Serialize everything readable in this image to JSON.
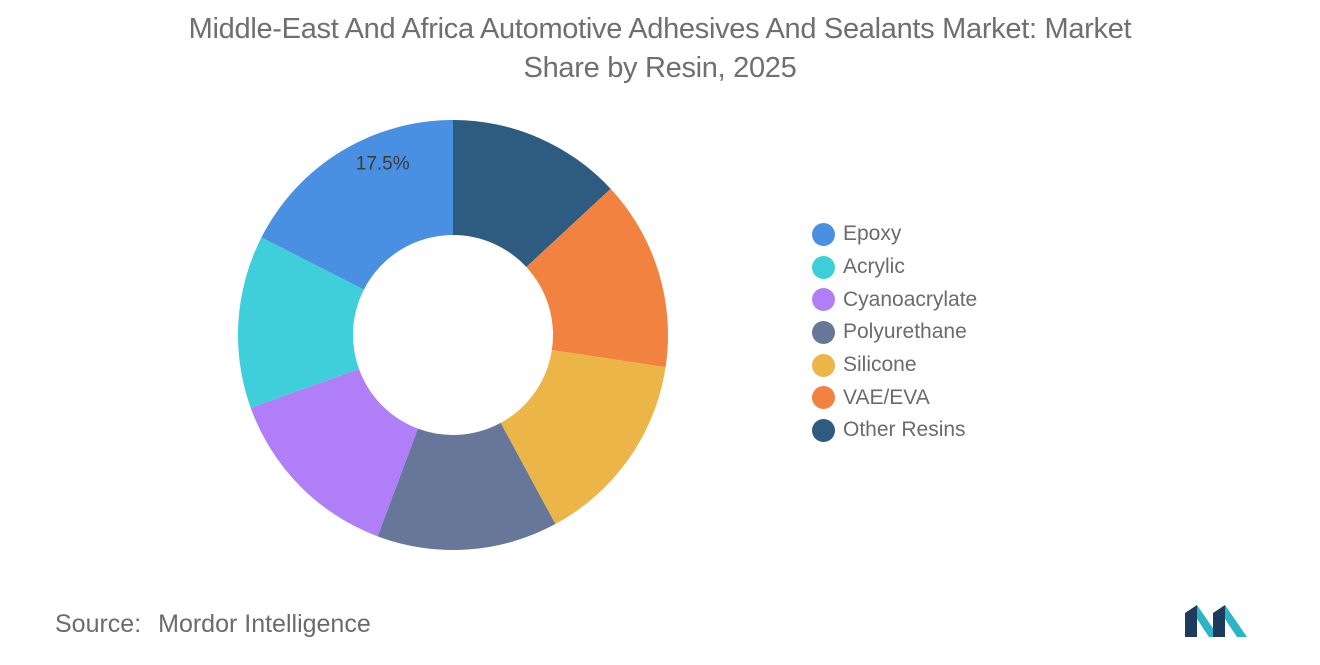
{
  "title_lines": [
    "Middle-East And Africa Automotive Adhesives And Sealants Market: Market",
    "Share by Resin, 2025"
  ],
  "chart_data": {
    "type": "pie",
    "variant": "donut",
    "title": "Middle-East And Africa Automotive Adhesives And Sealants Market: Market Share by Resin, 2025",
    "categories": [
      "Epoxy",
      "Acrylic",
      "Cyanoacrylate",
      "Polyurethane",
      "Silicone",
      "VAE/EVA",
      "Other Resins"
    ],
    "values": [
      17.5,
      13.0,
      13.8,
      13.6,
      14.7,
      14.3,
      13.1
    ],
    "colors": [
      "#4a90e2",
      "#3ecfda",
      "#b07ff7",
      "#667799",
      "#ebb548",
      "#f28240",
      "#2e5c80"
    ],
    "data_labels": [
      {
        "category": "Epoxy",
        "text": "17.5%"
      }
    ],
    "legend_position": "right"
  },
  "source": {
    "label": "Source:",
    "value": "Mordor Intelligence"
  },
  "logo_colors": [
    "#1e3a5c",
    "#2bb5c7"
  ]
}
